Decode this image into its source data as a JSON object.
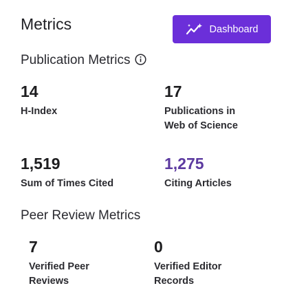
{
  "header": {
    "title": "Metrics",
    "dashboard_label": "Dashboard"
  },
  "publication_metrics": {
    "title": "Publication Metrics",
    "items": [
      {
        "value": "14",
        "label": "H-Index"
      },
      {
        "value": "17",
        "label": "Publications in Web of Science"
      },
      {
        "value": "1,519",
        "label": "Sum of Times Cited"
      },
      {
        "value": "1,275",
        "label": "Citing Articles"
      }
    ]
  },
  "peer_review_metrics": {
    "title": "Peer Review Metrics",
    "items": [
      {
        "value": "7",
        "label": "Verified Peer Reviews"
      },
      {
        "value": "0",
        "label": "Verified Editor Records"
      }
    ]
  },
  "colors": {
    "accent": "#6b2fd9",
    "link": "#5c3aa0",
    "text": "#1d1d1f"
  },
  "icons": {
    "dashboard_button": "sparkle-chart-icon",
    "publication_info": "info-icon"
  }
}
